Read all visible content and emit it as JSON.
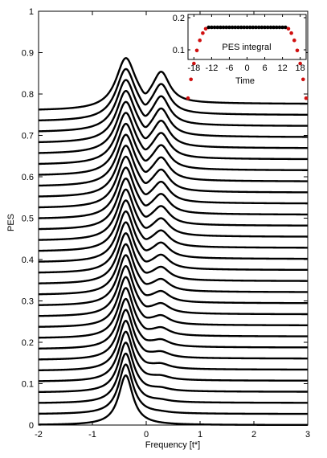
{
  "chart_data": [
    {
      "type": "line",
      "title": "",
      "xlabel": "Frequency [t*]",
      "ylabel": "PES",
      "xlim": [
        -2,
        3
      ],
      "ylim": [
        0,
        1
      ],
      "x_ticks": [
        "-2",
        "-1",
        "0",
        "1",
        "2",
        "3"
      ],
      "y_ticks": [
        "0",
        "0.1",
        "0.2",
        "0.3",
        "0.4",
        "0.5",
        "0.6",
        "0.7",
        "0.8",
        "0.9",
        "1"
      ],
      "grid": false,
      "legend": "none",
      "line_color": "#000000",
      "series_description": "30 waterfall curves stacked with vertical offset",
      "baseline_start": 0.0,
      "baseline_step": 0.0262,
      "main_peak_x": -0.38,
      "main_peak_height": 0.12,
      "shoulder_peak_x": 0.28,
      "shoulder_peak_height_final": 0.075
    },
    {
      "type": "scatter",
      "title": "PES integral",
      "xlabel": "Time",
      "ylabel": "",
      "xlim": [
        -20,
        20
      ],
      "ylim": [
        0.07,
        0.21
      ],
      "x_ticks": [
        "-18",
        "-12",
        "-6",
        "0",
        "6",
        "12",
        "18"
      ],
      "y_ticks": [
        "0.1",
        "0.2"
      ],
      "grid": false,
      "legend": "none",
      "plateau_value": 0.17,
      "colors": {
        "interior": "#000000",
        "edge": "#d01010"
      }
    }
  ]
}
